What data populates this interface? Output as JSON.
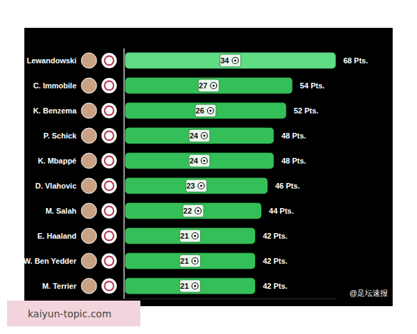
{
  "chart_data": {
    "type": "bar",
    "orientation": "horizontal",
    "categories": [
      "R. Lewandowski",
      "C. Immobile",
      "K. Benzema",
      "P. Schick",
      "K. Mbappé",
      "D. Vlahovic",
      "M. Salah",
      "E. Haaland",
      "W. Ben Yedder",
      "M. Terrier"
    ],
    "values": [
      34,
      27,
      26,
      24,
      24,
      23,
      22,
      21,
      21,
      21
    ],
    "colors": [
      "#5fdc84",
      "#34bf58",
      "#34bf58",
      "#34bf58",
      "#34bf58",
      "#34bf58",
      "#34bf58",
      "#34bf58",
      "#34bf58",
      "#34bf58"
    ],
    "data_labels": true,
    "points": [
      68,
      54,
      52,
      48,
      48,
      46,
      44,
      42,
      42,
      42
    ],
    "points_labels": [
      "68 Pts.",
      "54 Pts.",
      "52 Pts.",
      "48 Pts.",
      "48 Pts.",
      "46 Pts.",
      "44 Pts.",
      "42 Pts.",
      "42 Pts.",
      "42 Pts."
    ],
    "xlim": [
      0,
      34
    ],
    "xticks": [],
    "tick_labels": "y",
    "annotations": [
      "@足坛速报",
      "kaiyun-topic.com"
    ]
  }
}
